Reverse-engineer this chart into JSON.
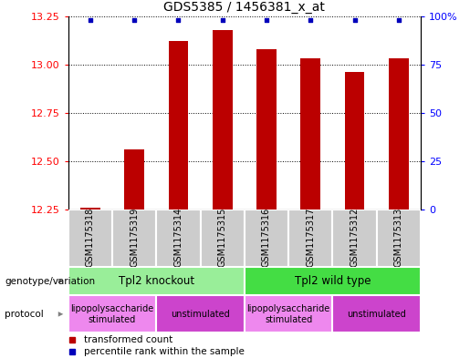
{
  "title": "GDS5385 / 1456381_x_at",
  "samples": [
    "GSM1175318",
    "GSM1175319",
    "GSM1175314",
    "GSM1175315",
    "GSM1175316",
    "GSM1175317",
    "GSM1175312",
    "GSM1175313"
  ],
  "bar_values": [
    12.26,
    12.56,
    13.12,
    13.18,
    13.08,
    13.03,
    12.96,
    13.03
  ],
  "percentile_values": [
    98,
    98,
    98,
    98,
    98,
    98,
    98,
    98
  ],
  "bar_bottom": 12.25,
  "ylim_left": [
    12.25,
    13.25
  ],
  "ylim_right": [
    0,
    100
  ],
  "yticks_left": [
    12.25,
    12.5,
    12.75,
    13.0,
    13.25
  ],
  "yticks_right": [
    0,
    25,
    50,
    75,
    100
  ],
  "bar_color": "#bb0000",
  "dot_color": "#0000bb",
  "grid_color": "#000000",
  "background_color": "#ffffff",
  "sample_box_color": "#cccccc",
  "genotype_groups": [
    {
      "label": "Tpl2 knockout",
      "start": 0,
      "end": 4,
      "color": "#99ee99"
    },
    {
      "label": "Tpl2 wild type",
      "start": 4,
      "end": 8,
      "color": "#44dd44"
    }
  ],
  "protocol_groups": [
    {
      "label": "lipopolysaccharide\nstimulated",
      "start": 0,
      "end": 2,
      "color": "#ee88ee"
    },
    {
      "label": "unstimulated",
      "start": 2,
      "end": 4,
      "color": "#cc44cc"
    },
    {
      "label": "lipopolysaccharide\nstimulated",
      "start": 4,
      "end": 6,
      "color": "#ee88ee"
    },
    {
      "label": "unstimulated",
      "start": 6,
      "end": 8,
      "color": "#cc44cc"
    }
  ],
  "legend_items": [
    {
      "label": "transformed count",
      "color": "#bb0000",
      "marker": "s"
    },
    {
      "label": "percentile rank within the sample",
      "color": "#0000bb",
      "marker": "s"
    }
  ],
  "left_labels": [
    {
      "text": "genotype/variation",
      "row": "geno"
    },
    {
      "text": "protocol",
      "row": "proto"
    }
  ]
}
